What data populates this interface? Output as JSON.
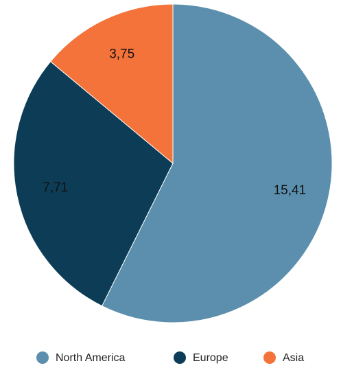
{
  "chart_data": {
    "type": "pie",
    "categories": [
      "North America",
      "Europe",
      "Asia"
    ],
    "values": [
      15.41,
      7.71,
      3.75
    ],
    "value_labels": [
      "15,41",
      "7,71",
      "3,75"
    ],
    "colors": [
      "#5b8fad",
      "#0d3d56",
      "#f4733a"
    ],
    "legend": "bottom"
  }
}
